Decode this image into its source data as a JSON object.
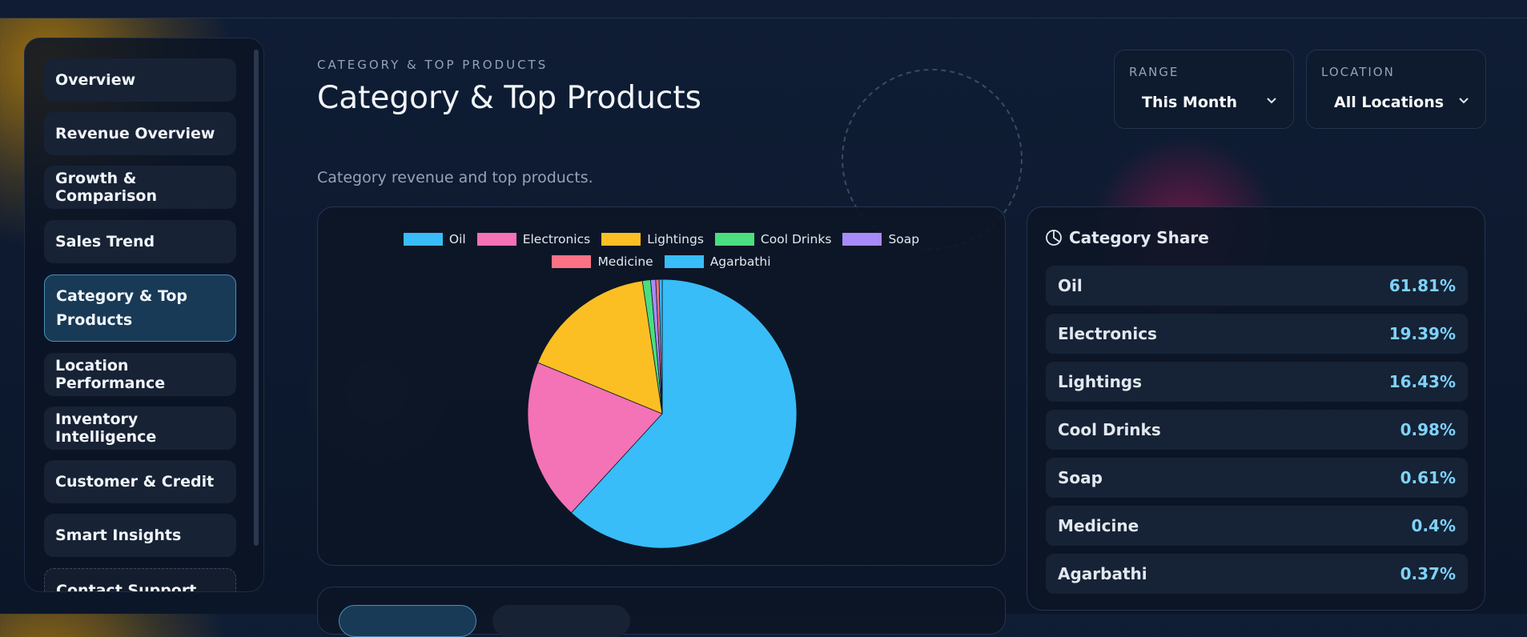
{
  "sidebar": {
    "items": [
      "Overview",
      "Revenue Overview",
      "Growth & Comparison",
      "Sales Trend",
      "Category & Top Products",
      "Location Performance",
      "Inventory Intelligence",
      "Customer & Credit",
      "Smart Insights",
      "Contact Support"
    ]
  },
  "header": {
    "eyebrow": "CATEGORY & TOP PRODUCTS",
    "title": "Category & Top Products",
    "subtitle": "Category revenue and top products."
  },
  "filters": [
    {
      "label": "RANGE",
      "value": "This Month"
    },
    {
      "label": "LOCATION",
      "value": "All Locations"
    }
  ],
  "chart_data": {
    "type": "pie",
    "categories": [
      "Oil",
      "Electronics",
      "Lightings",
      "Cool Drinks",
      "Soap",
      "Medicine",
      "Agarbathi"
    ],
    "values": [
      61.81,
      19.39,
      16.43,
      0.98,
      0.61,
      0.4,
      0.37
    ],
    "value_labels": [
      "61.81%",
      "19.39%",
      "16.43%",
      "0.98%",
      "0.61%",
      "0.4%",
      "0.37%"
    ],
    "colors": [
      "#38bdf8",
      "#f472b6",
      "#fbbf24",
      "#4ade80",
      "#a78bfa",
      "#fb7185",
      "#38bdf8"
    ]
  },
  "share_panel": {
    "title": "Category Share"
  }
}
